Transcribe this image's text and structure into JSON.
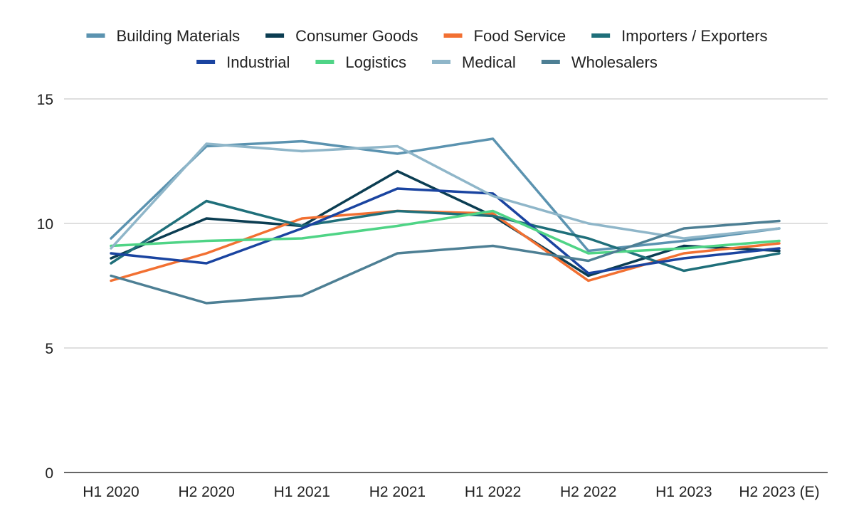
{
  "chart_data": {
    "type": "line",
    "title": "",
    "xlabel": "",
    "ylabel": "",
    "categories": [
      "H1 2020",
      "H2 2020",
      "H1 2021",
      "H2 2021",
      "H1 2022",
      "H2 2022",
      "H1 2023",
      "H2 2023 (E)"
    ],
    "ylim": [
      0,
      15
    ],
    "yticks": [
      0,
      5,
      10,
      15
    ],
    "grid": true,
    "legend_position": "top",
    "series": [
      {
        "name": "Building Materials",
        "color": "#5b93b0",
        "values": [
          9.4,
          13.1,
          13.3,
          12.8,
          13.4,
          8.9,
          9.3,
          9.8
        ]
      },
      {
        "name": "Consumer Goods",
        "color": "#0b3d52",
        "values": [
          8.6,
          10.2,
          9.9,
          12.1,
          10.3,
          7.9,
          9.1,
          8.9
        ]
      },
      {
        "name": "Food Service",
        "color": "#f27032",
        "values": [
          7.7,
          8.8,
          10.2,
          10.5,
          10.4,
          7.7,
          8.8,
          9.2
        ]
      },
      {
        "name": "Importers / Exporters",
        "color": "#1f6f7a",
        "values": [
          8.4,
          10.9,
          9.9,
          10.5,
          10.3,
          9.4,
          8.1,
          8.8
        ]
      },
      {
        "name": "Industrial",
        "color": "#1a44a0",
        "values": [
          8.8,
          8.4,
          9.8,
          11.4,
          11.2,
          8.0,
          8.6,
          9.0
        ]
      },
      {
        "name": "Logistics",
        "color": "#4fd486",
        "values": [
          9.1,
          9.3,
          9.4,
          9.9,
          10.5,
          8.8,
          9.0,
          9.3
        ]
      },
      {
        "name": "Medical",
        "color": "#8fb6c9",
        "values": [
          9.0,
          13.2,
          12.9,
          13.1,
          11.1,
          10.0,
          9.4,
          9.8
        ]
      },
      {
        "name": "Wholesalers",
        "color": "#4d7f94",
        "values": [
          7.9,
          6.8,
          7.1,
          8.8,
          9.1,
          8.5,
          9.8,
          10.1
        ]
      }
    ]
  }
}
